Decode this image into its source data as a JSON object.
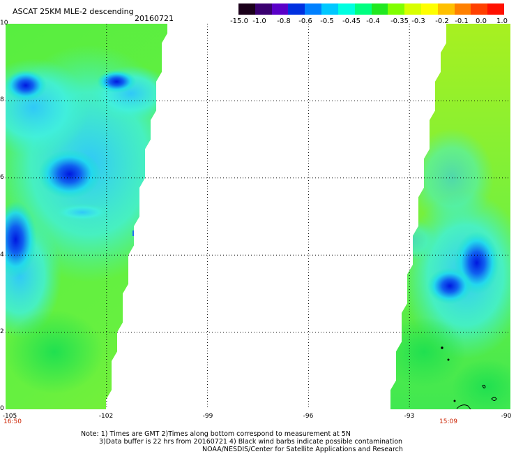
{
  "header": {
    "title": "ASCAT 25KM MLE-2 descending",
    "date": "20160721"
  },
  "colorbar": {
    "labels": [
      "-15.0",
      "-1.0",
      "-0.8",
      "-0.6",
      "-0.5",
      "-0.45",
      "-0.4",
      "-0.35",
      "-0.3",
      "-0.2",
      "-0.1",
      "0.0",
      "1.0"
    ],
    "colors": [
      "#1a001a",
      "#3a0070",
      "#5a00c8",
      "#0030e0",
      "#0080ff",
      "#00c8ff",
      "#00ffe0",
      "#00ff80",
      "#20e820",
      "#80ff00",
      "#d8ff00",
      "#ffff00",
      "#ffc000",
      "#ff8000",
      "#ff4000",
      "#ff1000"
    ]
  },
  "axes": {
    "y_labels": [
      "10",
      "8",
      "6",
      "4",
      "2",
      "0"
    ],
    "x_labels": [
      "-105",
      "-102",
      "-99",
      "-96",
      "-93",
      "-90"
    ],
    "time_labels": [
      "16:50",
      "15:09"
    ]
  },
  "notes": [
    "Note: 1) Times are GMT 2)Times along bottom correspond to measurement at 5N",
    "3)Data buffer is 22 hrs from 20160721 4) Black wind barbs indicate possible contamination",
    "NOAA/NESDIS/Center for Satellite Applications and Research"
  ],
  "map_data": {
    "lon_range": [
      -105,
      -90
    ],
    "lat_range": [
      0,
      10
    ],
    "left_swath": {
      "east_edge_lon_at_lat0": -102,
      "east_edge_lon_at_lat10": -100.2,
      "low_value_centers": [
        {
          "lon": -103.1,
          "lat": 6.1
        },
        {
          "lon": -104.7,
          "lat": 4.4
        },
        {
          "lon": -104.4,
          "lat": 8.4
        },
        {
          "lon": -101.7,
          "lat": 8.5
        }
      ]
    },
    "right_swath": {
      "west_edge_lon_at_lat0": -93.6,
      "west_edge_lon_at_lat10": -91.9,
      "low_value_centers": [
        {
          "lon": -91.0,
          "lat": 3.8
        },
        {
          "lon": -91.8,
          "lat": 3.2
        }
      ]
    },
    "grid_lons": [
      -102,
      -99,
      -96,
      -93
    ],
    "grid_lats": [
      2,
      4,
      6,
      8
    ]
  }
}
